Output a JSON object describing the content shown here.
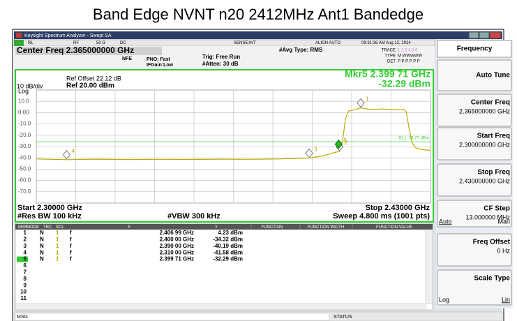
{
  "title": "Band Edge NVNT n20 2412MHz Ant1 Bandedge",
  "window_title": "Keysight Spectrum Analyzer - Swept SA",
  "status_row": [
    "RL",
    "RF",
    "50 Ω",
    "DC",
    "SENSE:INT",
    "ALIGN AUTO",
    "09:31:36 AM Aug 12, 2024"
  ],
  "settings": {
    "center_freq": "Center Freq 2.365000000 GHz",
    "nfe": "NFE",
    "pno": "PNO: Fast",
    "ifgain": "IFGain:Low",
    "trig": "Trig: Free Run",
    "atten": "#Atten: 30 dB",
    "avg": "#Avg Type: RMS",
    "trace_label": "TRACE",
    "trace_value": "1 2 3 4 5 6",
    "type_label": "TYPE",
    "type_value": "M WWWWW",
    "det_label": "DET",
    "det_value": "P P P P P P"
  },
  "chart_data": {
    "type": "line",
    "ref_offset": "Ref Offset 22.12 dB",
    "scale": "10 dB/div",
    "ref_level": "Ref 20.00 dBm",
    "log": "Log",
    "marker_readout": "Mkr5 2.399 71 GHz",
    "marker_readout_value": "-32.29 dBm",
    "start": "Start 2.30000 GHz",
    "stop": "Stop 2.43000 GHz",
    "rbw": "#Res BW 100 kHz",
    "vbw": "#VBW 300 kHz",
    "sweep": "Sweep  4.800 ms (1001 pts)",
    "xlim": [
      2.3,
      2.43
    ],
    "ylim": [
      -80,
      20
    ],
    "yticks": [
      {
        "value": 10,
        "label": "10.0"
      },
      {
        "value": 0,
        "label": "0.00"
      },
      {
        "value": -10,
        "label": "-10.0"
      },
      {
        "value": -20,
        "label": "-20.0"
      },
      {
        "value": -30,
        "label": "-30.0"
      },
      {
        "value": -40,
        "label": "-40.0"
      },
      {
        "value": -50,
        "label": "-50.0"
      },
      {
        "value": -60,
        "label": "-60.0"
      },
      {
        "value": -70,
        "label": "-70.0"
      }
    ],
    "grid": true,
    "display_line": {
      "label": "DL1 -25.77 dBm",
      "value": -25.77,
      "color": "#33cc33"
    },
    "trace": {
      "color": "#b8ab00",
      "x": [
        2.3,
        2.31,
        2.32,
        2.33,
        2.34,
        2.35,
        2.36,
        2.37,
        2.38,
        2.385,
        2.39,
        2.395,
        2.398,
        2.4,
        2.401,
        2.402,
        2.403,
        2.405,
        2.407,
        2.41,
        2.414,
        2.418,
        2.421,
        2.422,
        2.423,
        2.424,
        2.425,
        2.427,
        2.43
      ],
      "y": [
        -41,
        -41.6,
        -41.2,
        -41.5,
        -41.3,
        -41.4,
        -41.2,
        -41.3,
        -41,
        -40.6,
        -40.2,
        -38,
        -35.5,
        -34.3,
        -25,
        -5,
        1.5,
        2.5,
        4.23,
        2.8,
        3.2,
        2.6,
        2.9,
        1,
        -15,
        -27,
        -31,
        -32.5,
        -33.5
      ]
    },
    "markers": [
      {
        "label": "1",
        "x": 2.40699,
        "x_label": "2.406 99 GHz",
        "y": 4.23,
        "y_label": "4.23 dBm"
      },
      {
        "label": "2",
        "x": 2.4,
        "x_label": "2.400 00 GHz",
        "y": -34.32,
        "y_label": "-34.32 dBm"
      },
      {
        "label": "3",
        "x": 2.39,
        "x_label": "2.390 00 GHz",
        "y": -40.19,
        "y_label": "-40.19 dBm"
      },
      {
        "label": "4",
        "x": 2.31,
        "x_label": "2.310 00 GHz",
        "y": -41.58,
        "y_label": "-41.58 dBm"
      },
      {
        "label": "5",
        "x": 2.39971,
        "x_label": "2.399 71 GHz",
        "y": -32.29,
        "y_label": "-32.29 dBm"
      }
    ]
  },
  "marker_table": {
    "headers": [
      "MKR",
      "MODE",
      "TRC",
      "SCL",
      "X",
      "Y",
      "FUNCTION",
      "FUNCTION WIDTH",
      "FUNCTION VALUE"
    ],
    "rows": [
      [
        "N",
        "1",
        "f"
      ],
      [
        "N",
        "1",
        "f"
      ],
      [
        "N",
        "1",
        "f"
      ],
      [
        "N",
        "1",
        "f"
      ],
      [
        "N",
        "1",
        "f"
      ]
    ],
    "empty_rows": [
      "6",
      "7",
      "8",
      "9",
      "10",
      "11"
    ]
  },
  "softkeys": {
    "header": "Frequency",
    "keys": [
      {
        "label": "Auto Tune"
      },
      {
        "label": "Center Freq",
        "value": "2.365000000 GHz"
      },
      {
        "label": "Start Freq",
        "value": "2.300000000 GHz"
      },
      {
        "label": "Stop Freq",
        "value": "2.430000000 GHz"
      },
      {
        "label": "CF Step",
        "value": "13.000000 MHz",
        "options": [
          "Auto",
          "Man"
        ]
      },
      {
        "label": "Freq Offset",
        "value": "0 Hz"
      },
      {
        "label": "Scale Type",
        "options": [
          "Log",
          "Lin"
        ]
      }
    ]
  },
  "footer": {
    "msg": "MSG",
    "status": "STATUS"
  }
}
